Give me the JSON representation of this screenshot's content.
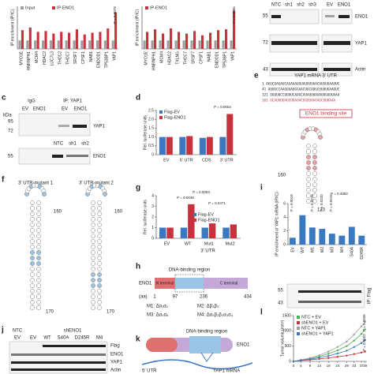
{
  "chart_data": [
    {
      "type": "bar",
      "ylabel": "IP enrichment (IP/IC)",
      "categories": [
        "MYO1E",
        "HNRNPH1",
        "MCM4",
        "HDAC2",
        "LUC7L3",
        "THOC2",
        "THOC7",
        "SRSF7",
        "CPSF1",
        "NAB1",
        "ENDOD1",
        "TP53BP1",
        "YAP1"
      ],
      "series": [
        {
          "name": "Input",
          "color": "#9e9e9e",
          "values": [
            1,
            1,
            1,
            1,
            1,
            1,
            1,
            1,
            1,
            1,
            1,
            1,
            1
          ]
        },
        {
          "name": "IP-ENO1",
          "color": "#c8323c",
          "values": [
            2.2,
            2.5,
            2.0,
            2.1,
            1.8,
            2.0,
            1.9,
            2.3,
            1.7,
            1.9,
            2.0,
            2.4,
            4.3
          ]
        }
      ],
      "ylim": [
        0,
        5
      ],
      "annotations": [
        "P = 0.0078"
      ]
    },
    {
      "type": "bar",
      "ylabel": "IP enrichment (IP/IC)",
      "categories": [
        "MYO1E",
        "HNRNPH1",
        "MCM4",
        "HDAC2",
        "TXLNG",
        "THOC7",
        "SRSF7",
        "CPSF1",
        "NAB1",
        "ENDOD1",
        "TP53BP1",
        "YAP1"
      ],
      "series": [
        {
          "name": "Input",
          "color": "#9e9e9e",
          "values": [
            1,
            1,
            1,
            1,
            1,
            1,
            1,
            1,
            1,
            1,
            1,
            1
          ]
        },
        {
          "name": "IP-ENO1",
          "color": "#c8323c",
          "values": [
            2.0,
            2.3,
            1.8,
            2.4,
            2.0,
            1.8,
            2.1,
            1.6,
            1.9,
            2.2,
            2.3,
            4.5
          ]
        }
      ],
      "ylim": [
        0,
        5
      ],
      "annotations": [
        "P = 0.0005"
      ]
    },
    {
      "type": "bar",
      "ylabel": "Rel. luciferase units",
      "categories": [
        "EV",
        "5′ UTR",
        "CDS",
        "3′ UTR"
      ],
      "series": [
        {
          "name": "Flag-EV",
          "color": "#3a78c0",
          "values": [
            1,
            1,
            0.95,
            1
          ]
        },
        {
          "name": "Flag-ENO1",
          "color": "#c8323c",
          "values": [
            1,
            1.05,
            1,
            2.3
          ]
        }
      ],
      "ylim": [
        0,
        2.5
      ],
      "yticks": [
        0,
        0.5,
        {
          "value": 1,
          "label": "1.0"
        },
        1.5,
        {
          "value": 2,
          "label": "2.0"
        },
        2.5
      ],
      "annotations": [
        "P = 0.0004"
      ]
    },
    {
      "type": "bar",
      "ylabel": "Rel. luciferase units",
      "xlabel": "3′ UTR",
      "categories": [
        "EV",
        "WT",
        "Mut1",
        "Mut2"
      ],
      "series": [
        {
          "name": "Flag-EV",
          "color": "#3a78c0",
          "values": [
            1,
            1,
            1,
            1
          ]
        },
        {
          "name": "Flag-ENO1",
          "color": "#c8323c",
          "values": [
            1,
            3.2,
            1.4,
            1.3
          ]
        }
      ],
      "ylim": [
        0,
        4
      ],
      "yticks": [
        0,
        1,
        2,
        3,
        4
      ],
      "annotations": [
        "P = 0.0063",
        "P = 0.0036",
        "P = 0.0471"
      ]
    },
    {
      "type": "bar",
      "ylabel": "IP enrichment of YAP1 mRNA (IP/IC)",
      "categories": [
        "EV",
        "WT",
        "M1",
        "M2",
        "M3",
        "M4",
        "S40A",
        "D245R"
      ],
      "series": [
        {
          "name": "IP: Flag",
          "color": "#3a78c0",
          "values": [
            1,
            4.3,
            2.5,
            2.3,
            1.6,
            1.3,
            2.6,
            1.3
          ]
        }
      ],
      "ylim": [
        0,
        6
      ],
      "yticks": [
        0,
        2,
        4,
        6
      ],
      "annotations": [
        "P = 0.4882",
        "P = 0.0018",
        "P = 0.0276",
        "P = 0.0233",
        "P = 0.0215"
      ]
    },
    {
      "type": "line",
      "ylabel": "Tumor volume (mm³)",
      "x": [
        0,
        4,
        9,
        14,
        19,
        24,
        29,
        33,
        37,
        39
      ],
      "series": [
        {
          "name": "NTC + EV",
          "color": "#4caf50",
          "values": [
            0,
            40,
            90,
            160,
            250,
            360,
            500,
            680,
            900,
            1050
          ]
        },
        {
          "name": "shENO1 + EV",
          "color": "#c8323c",
          "values": [
            0,
            30,
            50,
            80,
            110,
            150,
            190,
            240,
            290,
            320
          ]
        },
        {
          "name": "NTC + YAP1",
          "color": "#9e9e9e",
          "values": [
            0,
            50,
            110,
            200,
            320,
            470,
            650,
            880,
            1150,
            1300
          ]
        },
        {
          "name": "shENO1 + YAP1",
          "color": "#3a78c0",
          "values": [
            0,
            35,
            70,
            120,
            180,
            260,
            350,
            470,
            600,
            700
          ]
        }
      ],
      "xlim": [
        0,
        40
      ],
      "xticks": [
        0,
        4,
        9,
        14,
        19,
        24,
        29,
        33,
        37,
        39
      ],
      "ylim": [
        0,
        1500
      ],
      "yticks": [
        0,
        500,
        1000,
        1500
      ],
      "annotations": [
        "P = 0.0045",
        "P = 0.0022"
      ]
    }
  ],
  "figure": {
    "panel_labels": [
      "c",
      "d",
      "e",
      "f",
      "g",
      "h",
      "i",
      "j",
      "k",
      "l"
    ],
    "top_blot": {
      "lanes": [
        "NTC",
        "sh1",
        "sh2",
        "sh3",
        "EV",
        "ENO1"
      ],
      "kda": [
        "55",
        "72",
        "43"
      ],
      "proteins": [
        "ENO1",
        "YAP1",
        "Actin"
      ]
    },
    "c": {
      "groups": [
        "IgG",
        "IP: YAP1"
      ],
      "lanes": [
        "EV",
        "ENO1",
        "EV",
        "ENO1"
      ],
      "kda_title": "kDa",
      "kda": [
        "95",
        "72",
        "55"
      ],
      "proteins": [
        "YAP1",
        "ENO1"
      ],
      "lanes2": [
        "NTC",
        "sh1",
        "sh2"
      ]
    },
    "e": {
      "title": "YAP1 mRNA 3′ UTR",
      "sequence": [
        "1   AGGCUAGAUCAGAAAUGUAUUUUAACUUGUAAAUUC",
        "41  AUUGCCAAGUUAUGGAACUACUUGCUUUUGAAGUC",
        "121 UGUUUCCUUUUCAUGCAUAUUUAUAUUGUUUAAA",
        "161 GCAUUUUAUCUUAUACUGUUAAGAUCUUUAAA"
      ],
      "binding_site": "ENO1 binding site",
      "pos": [
        "160",
        "170"
      ]
    },
    "f": {
      "titles": [
        "3′ UTR-mutant 1",
        "3′ UTR-mutant 2"
      ],
      "pos": [
        "160",
        "170",
        "160",
        "170"
      ]
    },
    "h": {
      "region": "DNA-binding region",
      "protein": "ENO1",
      "n": "N terminal",
      "c": "C terminal",
      "aa": [
        "(aa)",
        "1",
        "97",
        "236",
        "434"
      ],
      "mutants": [
        "M1: Δα₁α₂",
        "M2: Δβ₂β₃",
        "M3: Δα₃α₄",
        "M4: Δα₃β₂β₃α₃α₄"
      ]
    },
    "i_blot": {
      "kda": [
        "55",
        "43"
      ],
      "label": "IP: Flag"
    },
    "j": {
      "groups": [
        "NTC",
        "shENO1"
      ],
      "lanes": [
        "EV",
        "EV",
        "WT",
        "S40A",
        "D245R",
        "M4"
      ],
      "proteins": [
        "Flag",
        "ENO1",
        "YAP1",
        "Actin"
      ]
    },
    "k": {
      "region": "DNA-binding region",
      "protein": "ENO1",
      "utr": "5′ UTR",
      "mrna": "YAP1 mRNA"
    }
  }
}
